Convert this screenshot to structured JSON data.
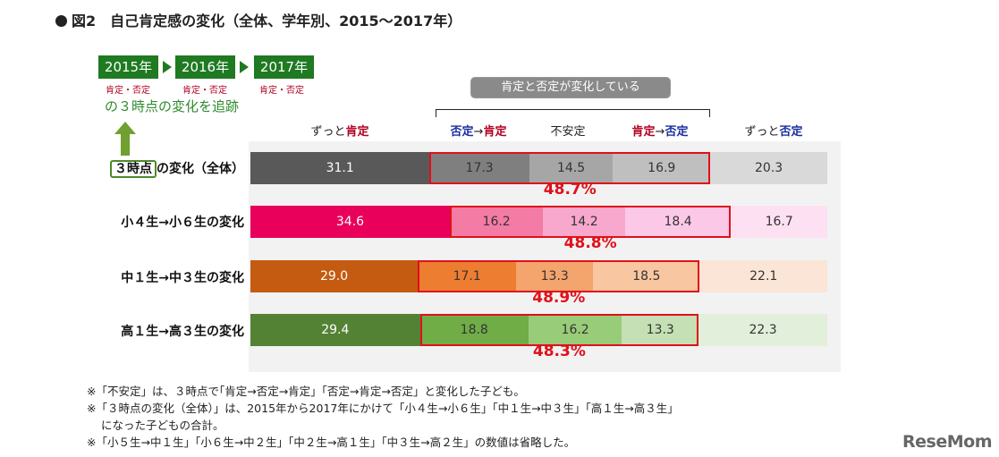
{
  "title": "図2　自己肯定感の変化（全体、学年別、2015〜2017年）",
  "legend": {
    "years": [
      "2015年",
      "2016年",
      "2017年"
    ],
    "year_sub_prefix": "肯定",
    "year_sub_sep": "・",
    "year_sub_suffix": "否定",
    "tracking_text": "の３時点の変化を追跡",
    "three_points_label": "３時点",
    "changing_group_label": "肯定と否定が変化している"
  },
  "column_headers": {
    "always_positive_prefix": "ずっと",
    "always_positive_em": "肯定",
    "neg_to_pos_from": "否定",
    "neg_to_pos_arrow": "→",
    "neg_to_pos_to": "肯定",
    "unstable": "不安定",
    "pos_to_neg_from": "肯定",
    "pos_to_neg_arrow": "→",
    "pos_to_neg_to": "否定",
    "always_negative_prefix": "ずっと",
    "always_negative_em": "否定"
  },
  "colors": {
    "positive_text": "#b00020",
    "negative_text": "#1a2fa0",
    "unstable_box": "#e0101a",
    "overall": [
      "#595959",
      "#7f7f7f",
      "#a6a6a6",
      "#bfbfbf",
      "#d9d9d9"
    ],
    "elementary": [
      "#e8005a",
      "#f47ba4",
      "#f8a8cc",
      "#fbc8e8",
      "#fde0f2"
    ],
    "junior_high": [
      "#c55a11",
      "#ed7d31",
      "#f4a46d",
      "#f8c6a1",
      "#fbe5d6"
    ],
    "high_school": [
      "#548235",
      "#70ad47",
      "#98cc78",
      "#c5e0b4",
      "#e2efda"
    ]
  },
  "chart_data": {
    "type": "bar",
    "orientation": "horizontal",
    "stacked": true,
    "unit": "%",
    "xlim": [
      0,
      100
    ],
    "categories": [
      "の変化（全体）",
      "小４生→小６生の変化",
      "中１生→中３生の変化",
      "高１生→高３生の変化"
    ],
    "series": [
      {
        "name": "ずっと肯定",
        "values": [
          31.1,
          34.6,
          29.0,
          29.4
        ]
      },
      {
        "name": "否定→肯定",
        "values": [
          17.3,
          16.2,
          17.1,
          18.8
        ]
      },
      {
        "name": "不安定",
        "values": [
          14.5,
          14.2,
          13.3,
          16.2
        ]
      },
      {
        "name": "肯定→否定",
        "values": [
          16.9,
          18.4,
          18.5,
          13.3
        ]
      },
      {
        "name": "ずっと否定",
        "values": [
          20.3,
          16.7,
          22.1,
          22.3
        ]
      }
    ],
    "value_labels": [
      [
        "31.1",
        "17.3",
        "14.5",
        "16.9",
        "20.3"
      ],
      [
        "34.6",
        "16.2",
        "14.2",
        "18.4",
        "16.7"
      ],
      [
        "29.0",
        "17.1",
        "13.3",
        "18.5",
        "22.1"
      ],
      [
        "29.4",
        "18.8",
        "16.2",
        "13.3",
        "22.3"
      ]
    ],
    "changing_totals": [
      "48.7%",
      "48.8%",
      "48.9%",
      "48.3%"
    ],
    "grid": false
  },
  "notes": [
    "※「不安定」は、３時点で｢肯定→否定→肯定｣「否定→肯定→否定」と変化した子ども。",
    "※「３時点の変化（全体）」は、2015年から2017年にかけて「小４生→小６生」「中１生→中３生」「高１生→高３生」",
    "になった子どもの合計。",
    "※「小５生→中１生」「小６生→中２生」「中２生→高１生」「中３生→高２生」の数値は省略した。"
  ],
  "watermark": "ReseMom"
}
